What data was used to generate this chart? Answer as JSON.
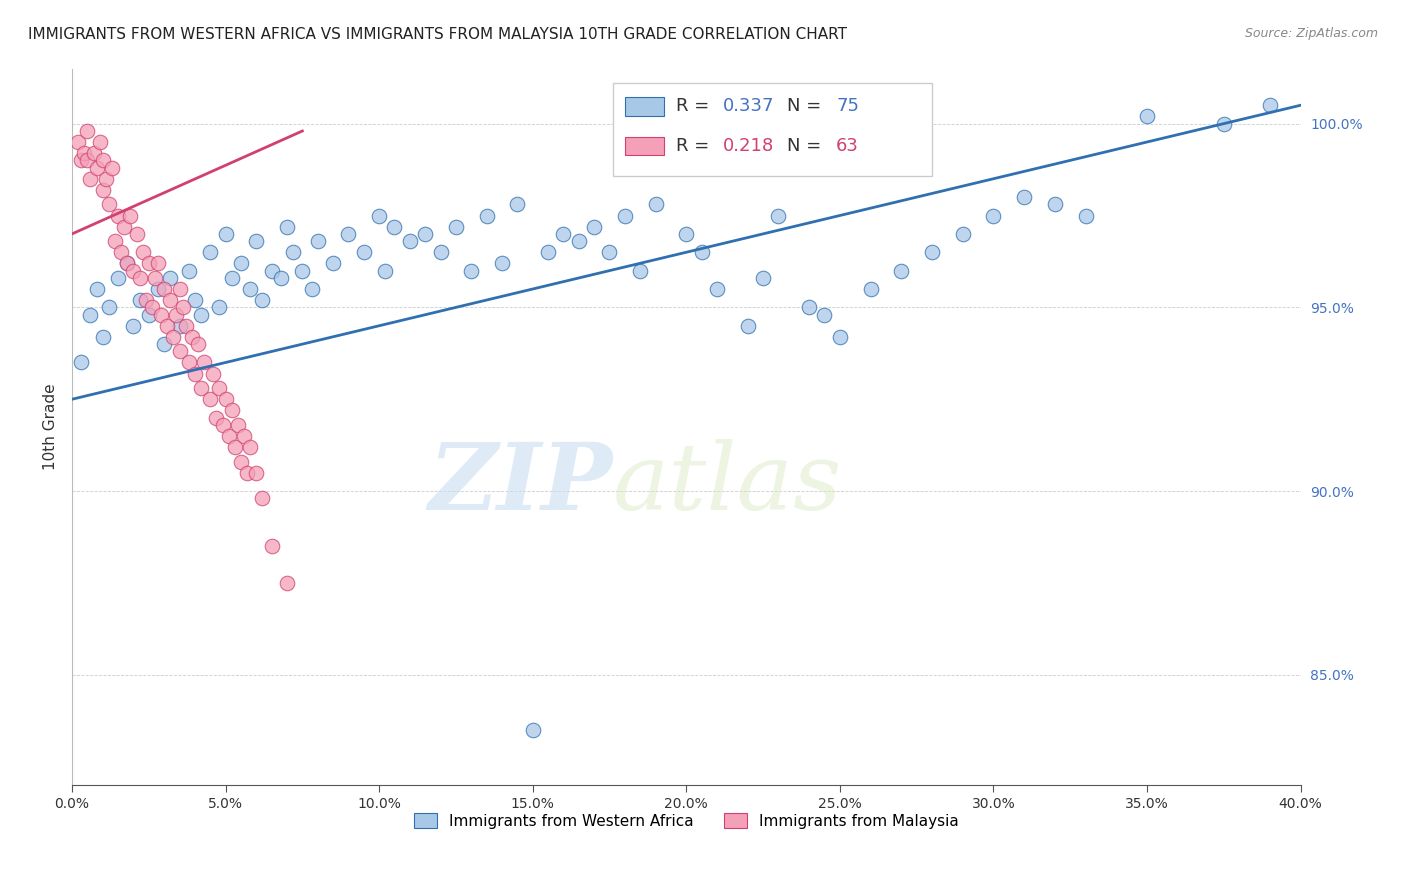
{
  "title": "IMMIGRANTS FROM WESTERN AFRICA VS IMMIGRANTS FROM MALAYSIA 10TH GRADE CORRELATION CHART",
  "source": "Source: ZipAtlas.com",
  "ylabel": "10th Grade",
  "legend_label_blue": "Immigrants from Western Africa",
  "legend_label_pink": "Immigrants from Malaysia",
  "r_blue": 0.337,
  "n_blue": 75,
  "r_pink": 0.218,
  "n_pink": 63,
  "x_min": 0.0,
  "x_max": 40.0,
  "y_min": 82.0,
  "y_max": 101.5,
  "y_ticks": [
    85.0,
    90.0,
    95.0,
    100.0
  ],
  "x_ticks": [
    0.0,
    5.0,
    10.0,
    15.0,
    20.0,
    25.0,
    30.0,
    35.0,
    40.0
  ],
  "color_blue": "#a8c8e8",
  "color_pink": "#f4a0b8",
  "line_color_blue": "#3070b0",
  "line_color_pink": "#d04070",
  "watermark_zip": "ZIP",
  "watermark_atlas": "atlas",
  "blue_points": [
    [
      0.3,
      93.5
    ],
    [
      0.6,
      94.8
    ],
    [
      0.8,
      95.5
    ],
    [
      1.0,
      94.2
    ],
    [
      1.2,
      95.0
    ],
    [
      1.5,
      95.8
    ],
    [
      1.8,
      96.2
    ],
    [
      2.0,
      94.5
    ],
    [
      2.2,
      95.2
    ],
    [
      2.5,
      94.8
    ],
    [
      2.8,
      95.5
    ],
    [
      3.0,
      94.0
    ],
    [
      3.2,
      95.8
    ],
    [
      3.5,
      94.5
    ],
    [
      3.8,
      96.0
    ],
    [
      4.0,
      95.2
    ],
    [
      4.2,
      94.8
    ],
    [
      4.5,
      96.5
    ],
    [
      4.8,
      95.0
    ],
    [
      5.0,
      97.0
    ],
    [
      5.2,
      95.8
    ],
    [
      5.5,
      96.2
    ],
    [
      5.8,
      95.5
    ],
    [
      6.0,
      96.8
    ],
    [
      6.2,
      95.2
    ],
    [
      6.5,
      96.0
    ],
    [
      6.8,
      95.8
    ],
    [
      7.0,
      97.2
    ],
    [
      7.2,
      96.5
    ],
    [
      7.5,
      96.0
    ],
    [
      7.8,
      95.5
    ],
    [
      8.0,
      96.8
    ],
    [
      8.5,
      96.2
    ],
    [
      9.0,
      97.0
    ],
    [
      9.5,
      96.5
    ],
    [
      10.0,
      97.5
    ],
    [
      10.2,
      96.0
    ],
    [
      10.5,
      97.2
    ],
    [
      11.0,
      96.8
    ],
    [
      11.5,
      97.0
    ],
    [
      12.0,
      96.5
    ],
    [
      12.5,
      97.2
    ],
    [
      13.0,
      96.0
    ],
    [
      13.5,
      97.5
    ],
    [
      14.0,
      96.2
    ],
    [
      14.5,
      97.8
    ],
    [
      15.0,
      83.5
    ],
    [
      15.5,
      96.5
    ],
    [
      16.0,
      97.0
    ],
    [
      16.5,
      96.8
    ],
    [
      17.0,
      97.2
    ],
    [
      17.5,
      96.5
    ],
    [
      18.0,
      97.5
    ],
    [
      18.5,
      96.0
    ],
    [
      19.0,
      97.8
    ],
    [
      20.0,
      97.0
    ],
    [
      20.5,
      96.5
    ],
    [
      21.0,
      95.5
    ],
    [
      22.0,
      94.5
    ],
    [
      22.5,
      95.8
    ],
    [
      23.0,
      97.5
    ],
    [
      24.0,
      95.0
    ],
    [
      24.5,
      94.8
    ],
    [
      25.0,
      94.2
    ],
    [
      26.0,
      95.5
    ],
    [
      27.0,
      96.0
    ],
    [
      28.0,
      96.5
    ],
    [
      29.0,
      97.0
    ],
    [
      30.0,
      97.5
    ],
    [
      31.0,
      98.0
    ],
    [
      32.0,
      97.8
    ],
    [
      33.0,
      97.5
    ],
    [
      35.0,
      100.2
    ],
    [
      37.5,
      100.0
    ],
    [
      39.0,
      100.5
    ]
  ],
  "pink_points": [
    [
      0.2,
      99.5
    ],
    [
      0.3,
      99.0
    ],
    [
      0.4,
      99.2
    ],
    [
      0.5,
      99.8
    ],
    [
      0.5,
      99.0
    ],
    [
      0.6,
      98.5
    ],
    [
      0.7,
      99.2
    ],
    [
      0.8,
      98.8
    ],
    [
      0.9,
      99.5
    ],
    [
      1.0,
      98.2
    ],
    [
      1.0,
      99.0
    ],
    [
      1.1,
      98.5
    ],
    [
      1.2,
      97.8
    ],
    [
      1.3,
      98.8
    ],
    [
      1.4,
      96.8
    ],
    [
      1.5,
      97.5
    ],
    [
      1.6,
      96.5
    ],
    [
      1.7,
      97.2
    ],
    [
      1.8,
      96.2
    ],
    [
      1.9,
      97.5
    ],
    [
      2.0,
      96.0
    ],
    [
      2.1,
      97.0
    ],
    [
      2.2,
      95.8
    ],
    [
      2.3,
      96.5
    ],
    [
      2.4,
      95.2
    ],
    [
      2.5,
      96.2
    ],
    [
      2.6,
      95.0
    ],
    [
      2.7,
      95.8
    ],
    [
      2.8,
      96.2
    ],
    [
      2.9,
      94.8
    ],
    [
      3.0,
      95.5
    ],
    [
      3.1,
      94.5
    ],
    [
      3.2,
      95.2
    ],
    [
      3.3,
      94.2
    ],
    [
      3.4,
      94.8
    ],
    [
      3.5,
      95.5
    ],
    [
      3.5,
      93.8
    ],
    [
      3.6,
      95.0
    ],
    [
      3.7,
      94.5
    ],
    [
      3.8,
      93.5
    ],
    [
      3.9,
      94.2
    ],
    [
      4.0,
      93.2
    ],
    [
      4.1,
      94.0
    ],
    [
      4.2,
      92.8
    ],
    [
      4.3,
      93.5
    ],
    [
      4.5,
      92.5
    ],
    [
      4.6,
      93.2
    ],
    [
      4.7,
      92.0
    ],
    [
      4.8,
      92.8
    ],
    [
      4.9,
      91.8
    ],
    [
      5.0,
      92.5
    ],
    [
      5.1,
      91.5
    ],
    [
      5.2,
      92.2
    ],
    [
      5.3,
      91.2
    ],
    [
      5.4,
      91.8
    ],
    [
      5.5,
      90.8
    ],
    [
      5.6,
      91.5
    ],
    [
      5.7,
      90.5
    ],
    [
      5.8,
      91.2
    ],
    [
      6.0,
      90.5
    ],
    [
      6.2,
      89.8
    ],
    [
      6.5,
      88.5
    ],
    [
      7.0,
      87.5
    ]
  ],
  "blue_line_x": [
    0.0,
    40.0
  ],
  "blue_line_y": [
    92.5,
    100.5
  ],
  "pink_line_x": [
    0.0,
    7.5
  ],
  "pink_line_y": [
    97.0,
    99.8
  ]
}
